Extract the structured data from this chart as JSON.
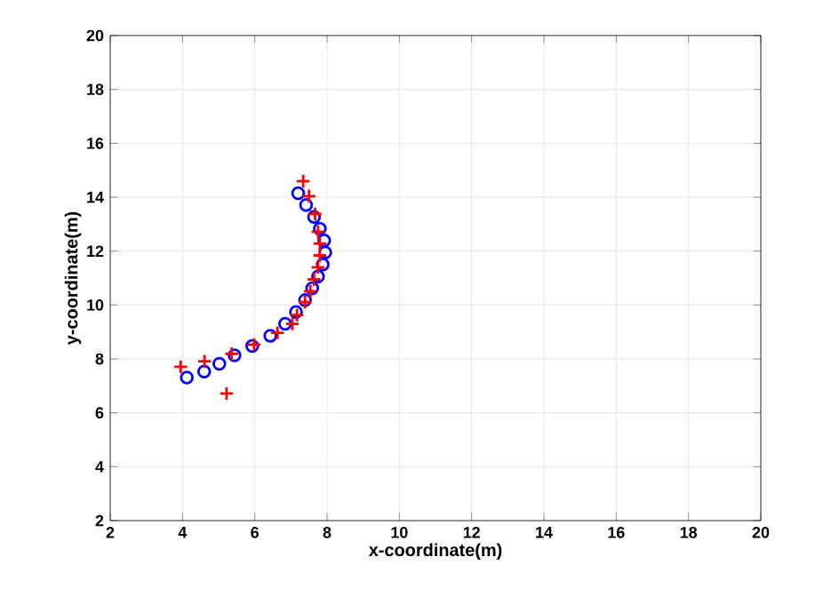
{
  "chart_data": {
    "type": "scatter",
    "xlabel": "x-coordinate(m)",
    "ylabel": "y-coordinate(m)",
    "xlim": [
      2,
      20
    ],
    "ylim": [
      2,
      20
    ],
    "xticks": [
      2,
      4,
      6,
      8,
      10,
      12,
      14,
      16,
      18,
      20
    ],
    "yticks": [
      2,
      4,
      6,
      8,
      10,
      12,
      14,
      16,
      18,
      20
    ],
    "grid": true,
    "series": [
      {
        "color": "#0000ff",
        "marker": "circle",
        "x": [
          4.12,
          4.6,
          5.02,
          5.44,
          5.93,
          6.43,
          6.84,
          7.14,
          7.39,
          7.59,
          7.75,
          7.88,
          7.95,
          7.92,
          7.8,
          7.64,
          7.42,
          7.2
        ],
        "values": [
          7.31,
          7.53,
          7.82,
          8.13,
          8.48,
          8.86,
          9.3,
          9.74,
          10.18,
          10.62,
          11.06,
          11.5,
          11.95,
          12.39,
          12.83,
          13.27,
          13.71,
          14.15
        ]
      },
      {
        "color": "#ff0000",
        "marker": "cross",
        "x": [
          3.95,
          4.61,
          5.22,
          5.36,
          5.98,
          6.63,
          7.04,
          7.17,
          7.39,
          7.54,
          7.64,
          7.75,
          7.8,
          7.8,
          7.75,
          7.67,
          7.5,
          7.34
        ],
        "values": [
          7.71,
          7.91,
          6.72,
          8.19,
          8.53,
          8.97,
          9.3,
          9.63,
          10.11,
          10.51,
          10.95,
          11.4,
          11.84,
          12.28,
          12.72,
          13.38,
          14.04,
          14.6
        ]
      }
    ]
  }
}
